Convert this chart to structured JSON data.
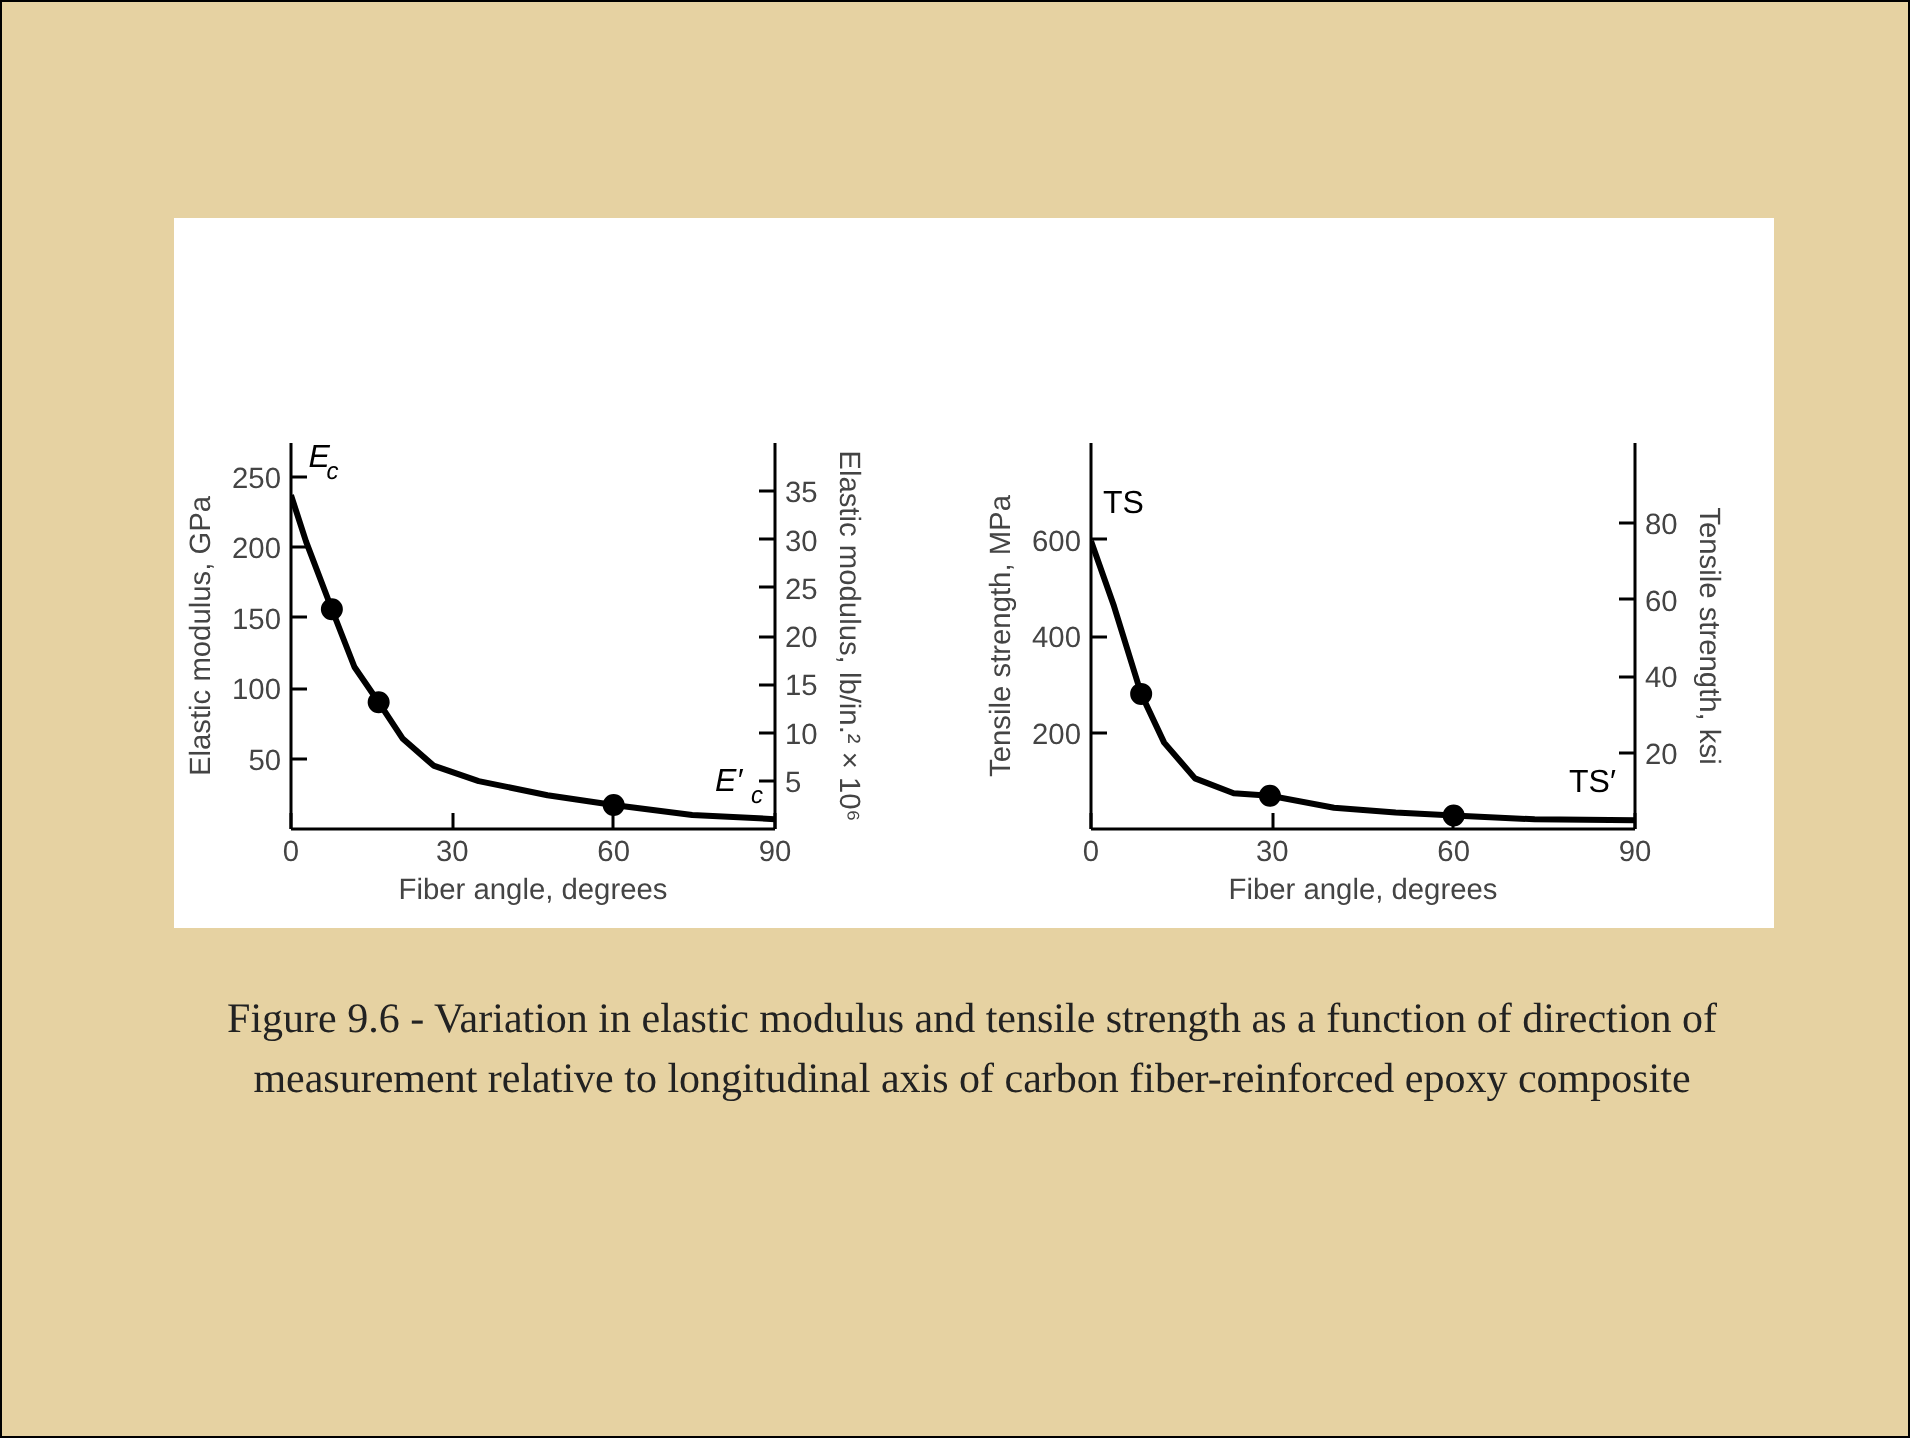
{
  "chart_data": [
    {
      "type": "line",
      "xlabel": "Fiber angle, degrees",
      "ylabel": "Elastic modulus, GPa",
      "y2label": "Elastic modulus, lb/in.² × 10⁶",
      "xlim": [
        0,
        90
      ],
      "xticks": [
        0,
        30,
        60,
        90
      ],
      "ylim": [
        0,
        274
      ],
      "yticks": [
        50,
        100,
        150,
        200,
        250
      ],
      "y2lim": [
        0,
        40
      ],
      "y2ticks": [
        5,
        10,
        15,
        20,
        25,
        30,
        35
      ],
      "grid": false,
      "series": [
        {
          "color": "#000000",
          "x": [
            0,
            2.8,
            7.6,
            11.8,
            16.3,
            20.8,
            26.5,
            34.9,
            47.7,
            60,
            74.6,
            90
          ],
          "values": [
            237,
            204,
            156,
            115,
            90,
            64,
            45,
            34,
            24,
            17,
            10,
            7
          ]
        },
        {
          "type": "scatter",
          "marker": "circle",
          "color": "#000000",
          "x": [
            7.6,
            16.3,
            60
          ],
          "values": [
            156,
            90,
            17
          ]
        }
      ],
      "annotations": [
        {
          "text": "E$_{c}$",
          "x": 1,
          "y": 237
        },
        {
          "text": "E′$_{c}$",
          "x": 90,
          "y": 7
        }
      ]
    },
    {
      "type": "line",
      "xlabel": "Fiber angle, degrees",
      "ylabel": "Tensile strength, MPa",
      "y2label": "Tensile strength, ksi",
      "xlim": [
        0,
        90
      ],
      "xticks": [
        0,
        30,
        60,
        90
      ],
      "ylim": [
        0,
        800
      ],
      "yticks": [
        200,
        400,
        600
      ],
      "y2lim": [
        0,
        101
      ],
      "y2ticks": [
        20,
        40,
        60,
        80
      ],
      "grid": false,
      "series": [
        {
          "color": "#000000",
          "x": [
            0,
            3.8,
            8.3,
            12.1,
            17.2,
            23.6,
            29.6,
            40.2,
            50.4,
            60,
            73.4,
            90
          ],
          "values": [
            597,
            462,
            280,
            179,
            105,
            74,
            69,
            44,
            34,
            28,
            20,
            18
          ]
        },
        {
          "type": "scatter",
          "marker": "circle",
          "color": "#000000",
          "x": [
            8.3,
            29.6,
            60
          ],
          "values": [
            280,
            69,
            28
          ]
        }
      ],
      "annotations": [
        {
          "text": "TS",
          "x": 0,
          "y": 597
        },
        {
          "text": "TS′",
          "x": 90,
          "y": 18
        },
        "Figure 9.6 - Variation in elastic modulus and tensile strength as a function of direction of measurement relative to longitudinal axis of carbon fiber-reinforced epoxy composite"
      ]
    }
  ]
}
